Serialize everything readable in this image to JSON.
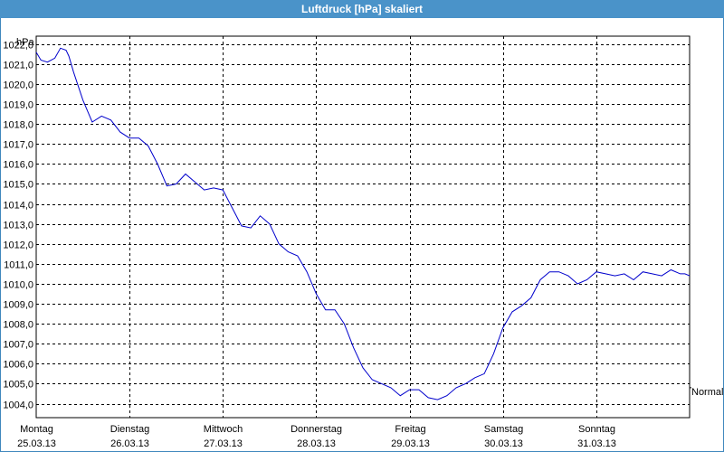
{
  "window": {
    "title": "Luftdruck [hPa] skaliert"
  },
  "chart_data": {
    "type": "line",
    "title": "Luftdruck [hPa] skaliert",
    "ylabel": "hPa",
    "ylim": [
      1003.3,
      1022.4
    ],
    "yticks": [
      1004,
      1005,
      1006,
      1007,
      1008,
      1009,
      1010,
      1011,
      1012,
      1013,
      1014,
      1015,
      1016,
      1017,
      1018,
      1019,
      1020,
      1021,
      1022
    ],
    "ytick_labels": [
      "1004,0",
      "1005,0",
      "1006,0",
      "1007,0",
      "1008,0",
      "1009,0",
      "1010,0",
      "1011,0",
      "1012,0",
      "1013,0",
      "1014,0",
      "1015,0",
      "1016,0",
      "1017,0",
      "1018,0",
      "1019,0",
      "1020,0",
      "1021,0",
      "1022,0"
    ],
    "xlim": [
      0,
      7
    ],
    "categories": [
      {
        "day": "Montag",
        "date": "25.03.13"
      },
      {
        "day": "Dienstag",
        "date": "26.03.13"
      },
      {
        "day": "Mittwoch",
        "date": "27.03.13"
      },
      {
        "day": "Donnerstag",
        "date": "28.03.13"
      },
      {
        "day": "Freitag",
        "date": "29.03.13"
      },
      {
        "day": "Samstag",
        "date": "30.03.13"
      },
      {
        "day": "Sonntag",
        "date": "31.03.13"
      }
    ],
    "reference_line": {
      "label": "Normal",
      "value": 1004.8
    },
    "grid": true,
    "line_color": "#0000cc",
    "series": [
      {
        "x": [
          0,
          0.05,
          0.12,
          0.2,
          0.26,
          0.32,
          0.35,
          0.4,
          0.5,
          0.6,
          0.7,
          0.8,
          0.9,
          1.0,
          1.1,
          1.2,
          1.3,
          1.4,
          1.5,
          1.6,
          1.7,
          1.8,
          1.9,
          2.0,
          2.1,
          2.2,
          2.3,
          2.4,
          2.5,
          2.6,
          2.7,
          2.8,
          2.9,
          3.0,
          3.1,
          3.2,
          3.3,
          3.4,
          3.5,
          3.6,
          3.7,
          3.8,
          3.9,
          4.0,
          4.1,
          4.2,
          4.3,
          4.4,
          4.5,
          4.6,
          4.7,
          4.8,
          4.9,
          5.0,
          5.1,
          5.2,
          5.3,
          5.4,
          5.5,
          5.6,
          5.7,
          5.8,
          5.9,
          6.0,
          6.1,
          6.2,
          6.3,
          6.4,
          6.5,
          6.6,
          6.7,
          6.8,
          6.9,
          6.95,
          7.0
        ],
        "y": [
          1021.6,
          1021.2,
          1021.1,
          1021.3,
          1021.8,
          1021.7,
          1021.4,
          1020.6,
          1019.2,
          1018.1,
          1018.4,
          1018.2,
          1017.6,
          1017.3,
          1017.3,
          1016.9,
          1016.0,
          1014.9,
          1015.0,
          1015.5,
          1015.1,
          1014.7,
          1014.8,
          1014.7,
          1013.8,
          1012.9,
          1012.8,
          1013.4,
          1013.0,
          1012.0,
          1011.6,
          1011.4,
          1010.6,
          1009.5,
          1008.7,
          1008.7,
          1008.0,
          1006.8,
          1005.8,
          1005.2,
          1005.0,
          1004.8,
          1004.4,
          1004.7,
          1004.7,
          1004.3,
          1004.2,
          1004.4,
          1004.8,
          1005.0,
          1005.3,
          1005.5,
          1006.5,
          1007.8,
          1008.6,
          1008.9,
          1009.3,
          1010.2,
          1010.6,
          1010.6,
          1010.4,
          1010.0,
          1010.2,
          1010.6,
          1010.5,
          1010.4,
          1010.5,
          1010.2,
          1010.6,
          1010.5,
          1010.4,
          1010.7,
          1010.5,
          1010.5,
          1010.4
        ]
      }
    ]
  }
}
